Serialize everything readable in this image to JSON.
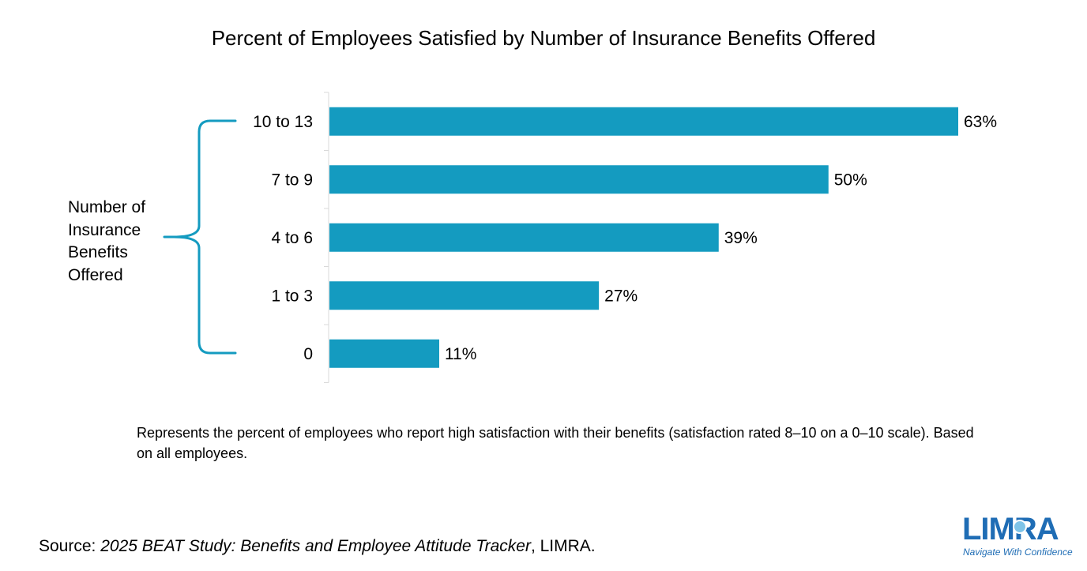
{
  "chart_data": {
    "type": "bar",
    "orientation": "horizontal",
    "title": "Percent of Employees Satisfied by Number of Insurance Benefits Offered",
    "categories": [
      "10 to 13",
      "7 to 9",
      "4 to 6",
      "1 to 3",
      "0"
    ],
    "values": [
      63,
      50,
      39,
      27,
      11
    ],
    "value_labels": [
      "63%",
      "50%",
      "39%",
      "27%",
      "11%"
    ],
    "value_suffix": "%",
    "xlim": [
      0,
      63
    ],
    "grid": false,
    "legend": "none",
    "bar_color": "#149bc0",
    "group_label": "Number of Insurance Benefits Offered",
    "bracket_color": "#149bc0"
  },
  "note": "Represents the percent of employees who report high satisfaction with their benefits (satisfaction rated 8–10 on a 0–10 scale). Based on all employees.",
  "source": {
    "prefix": "Source: ",
    "title": "2025 BEAT Study: Benefits and Employee Attitude Tracker",
    "suffix": ", LIMRA."
  },
  "logo": {
    "word": "LIMRA",
    "tagline": "Navigate With Confidence",
    "color": "#1f6db5"
  }
}
